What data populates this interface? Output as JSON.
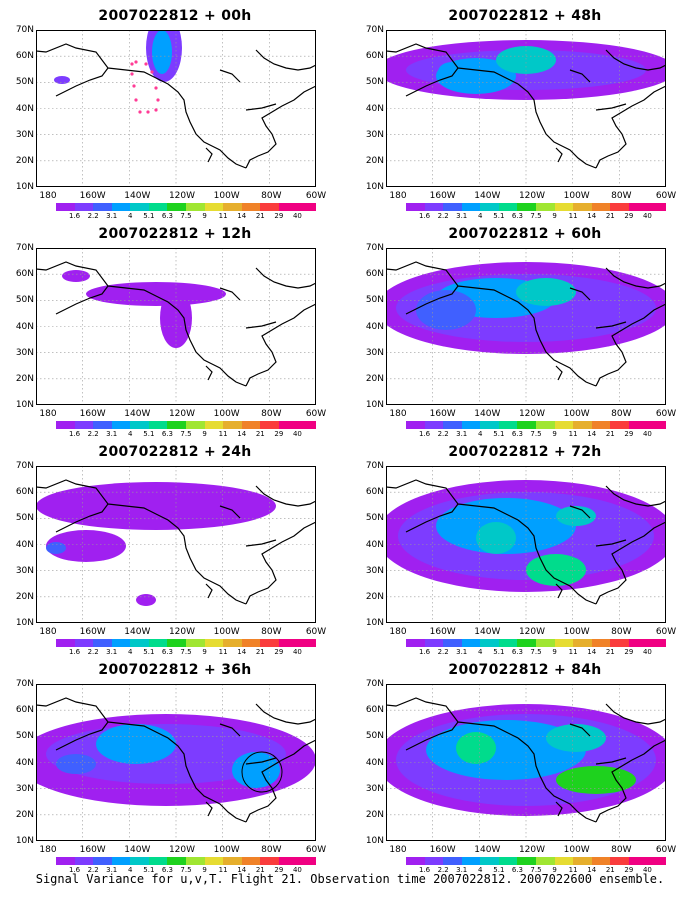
{
  "panels": [
    {
      "title": "2007022812 + 00h",
      "lead": "00h"
    },
    {
      "title": "2007022812 + 48h",
      "lead": "48h"
    },
    {
      "title": "2007022812 + 12h",
      "lead": "12h"
    },
    {
      "title": "2007022812 + 60h",
      "lead": "60h"
    },
    {
      "title": "2007022812 + 24h",
      "lead": "24h"
    },
    {
      "title": "2007022812 + 72h",
      "lead": "72h"
    },
    {
      "title": "2007022812 + 36h",
      "lead": "36h"
    },
    {
      "title": "2007022812 + 84h",
      "lead": "84h"
    }
  ],
  "lat_labels": [
    "70N",
    "60N",
    "50N",
    "40N",
    "30N",
    "20N",
    "10N"
  ],
  "lon_labels": [
    "180",
    "160W",
    "140W",
    "120W",
    "100W",
    "80W",
    "60W"
  ],
  "colorbar": {
    "labels": [
      "1.6",
      "2.2",
      "3.1",
      "4",
      "5.1",
      "6.3",
      "7.5",
      "9",
      "11",
      "14",
      "21",
      "29",
      "40"
    ],
    "colors": [
      "#a020f0",
      "#7d3cff",
      "#4060ff",
      "#00a0ff",
      "#00c8c8",
      "#00dc8c",
      "#1ed21e",
      "#a0e632",
      "#e6dc32",
      "#e6af2d",
      "#f08228",
      "#fa3c3c",
      "#f00082"
    ]
  },
  "caption": "Signal Variance for u,v,T. Flight 21. Observation time 2007022812. 2007022600 ensemble.",
  "map_colors": {
    "land_line": "#000000",
    "grid": "#9a9a9a",
    "track": "#ff3c96"
  }
}
